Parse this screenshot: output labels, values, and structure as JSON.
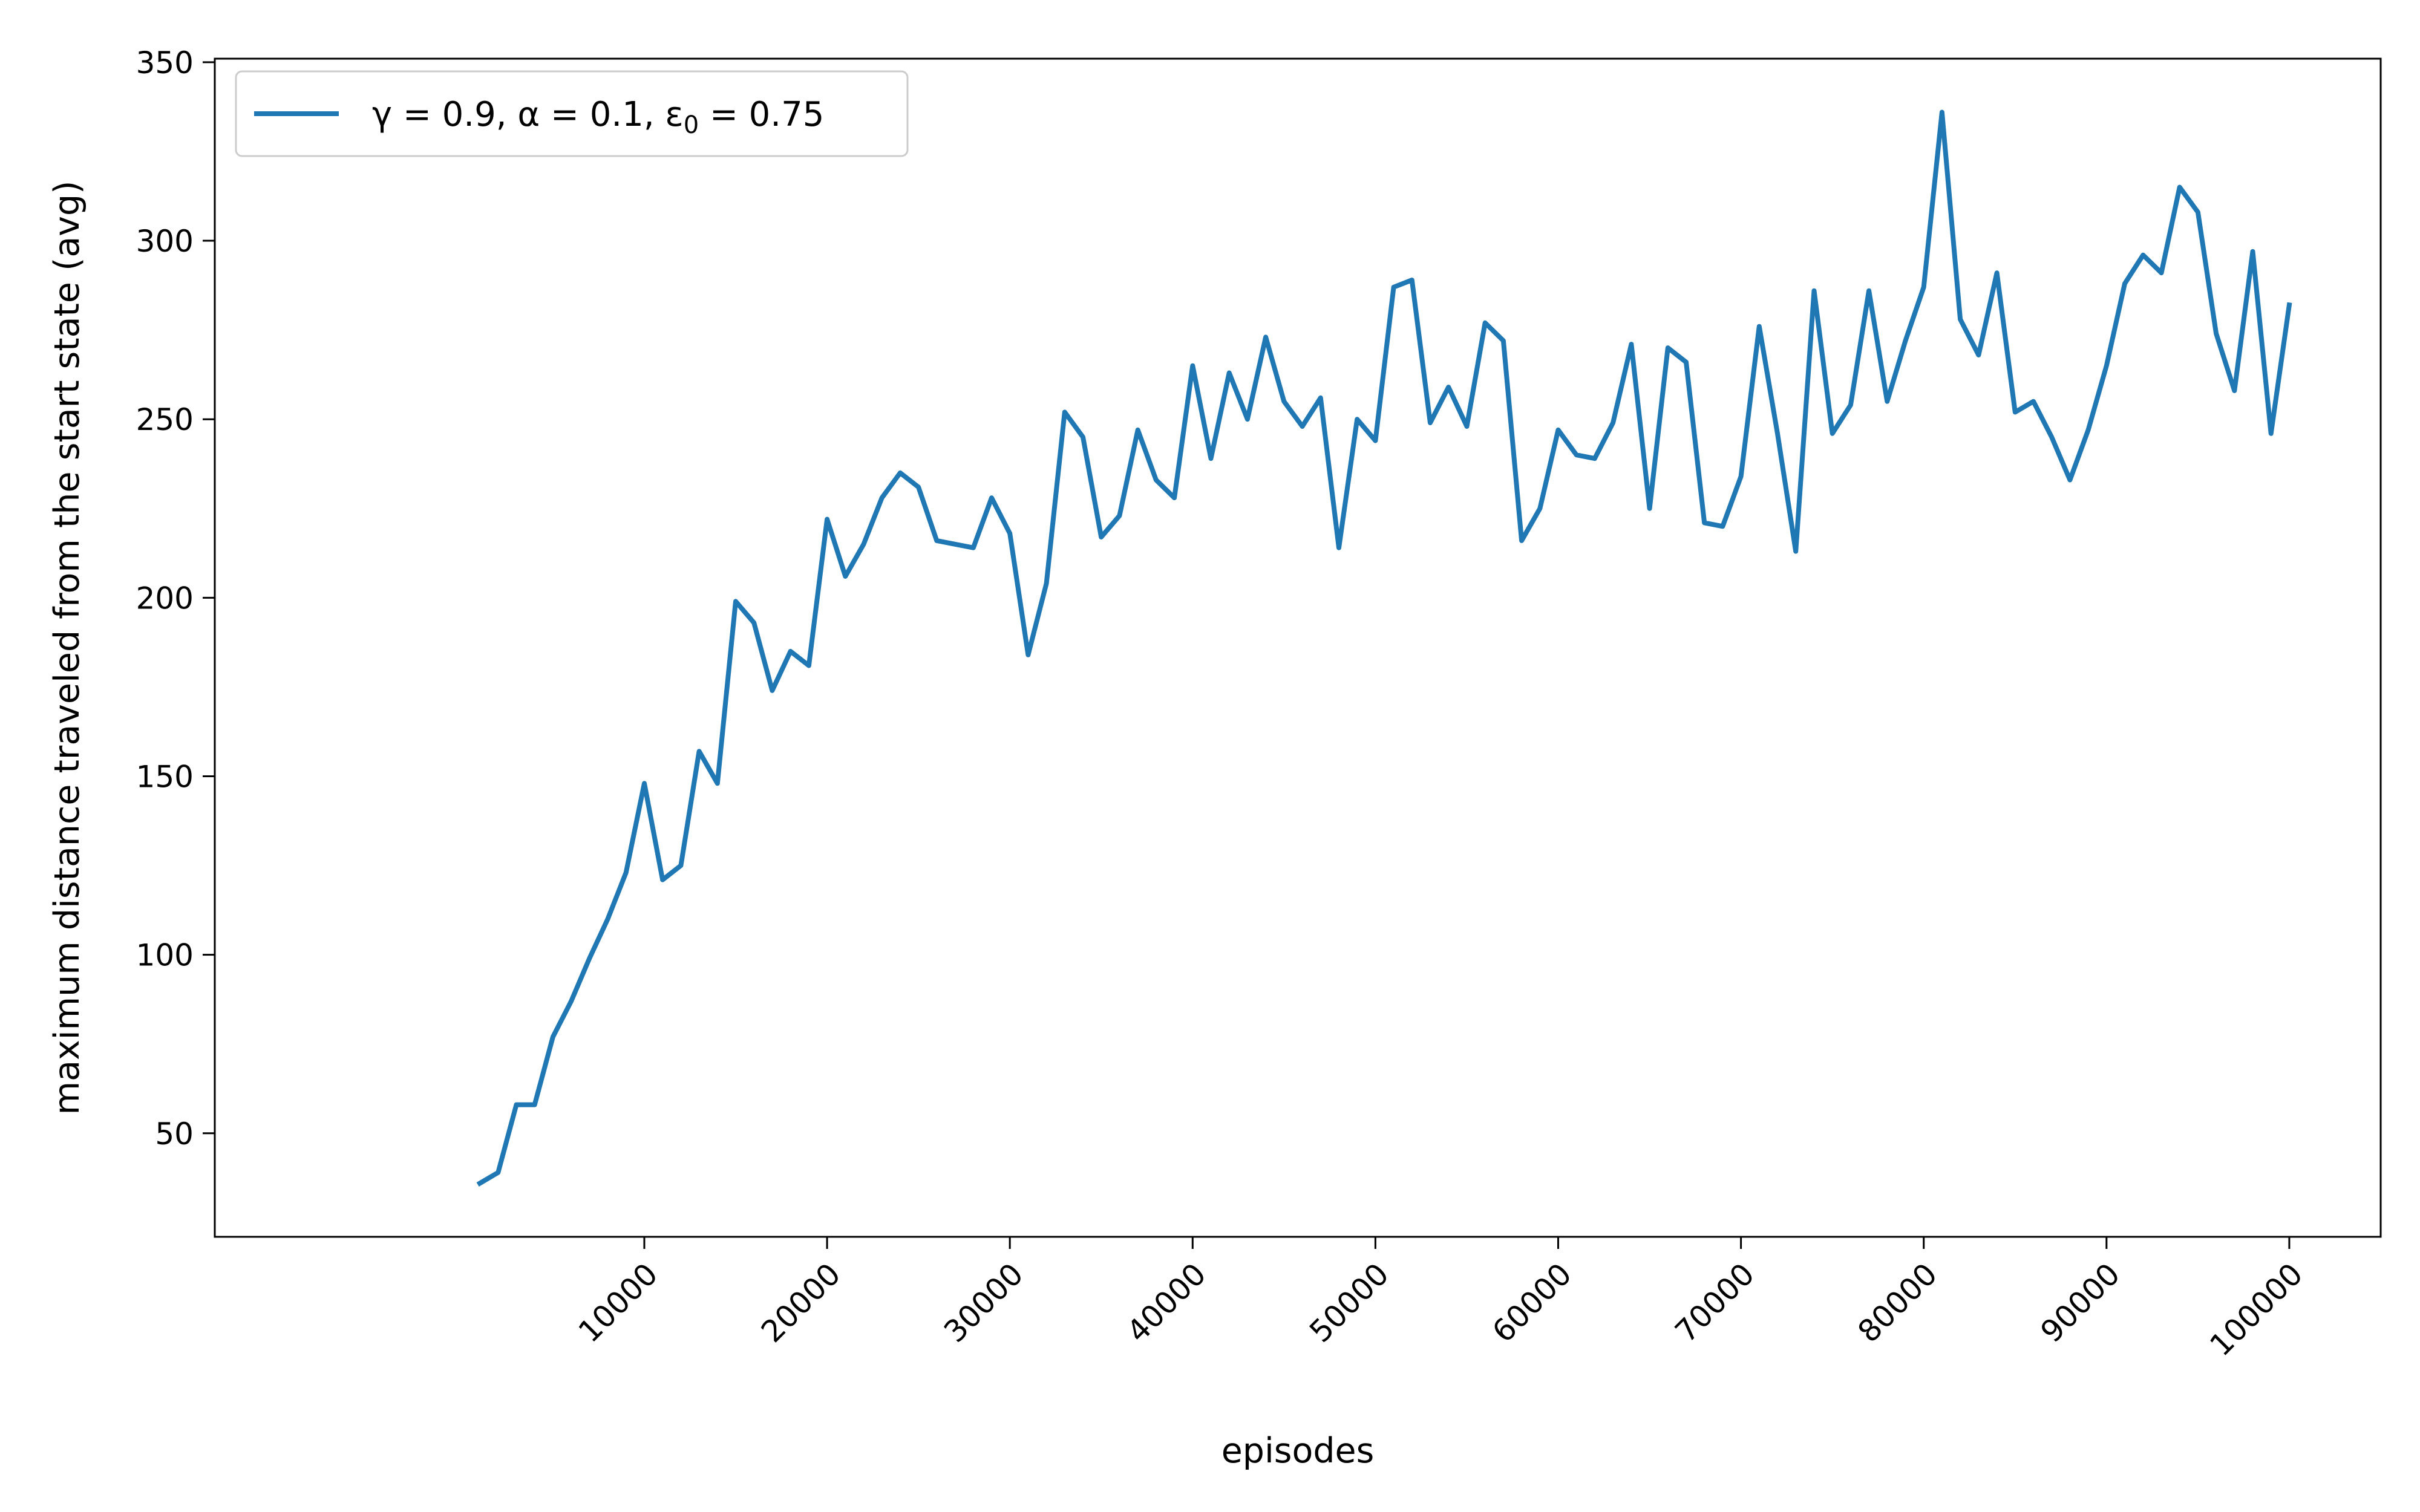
{
  "chart_data": {
    "type": "line",
    "title": "",
    "xlabel": "episodes",
    "ylabel": "maximum distance traveled from the start state (avg)",
    "xlim": [
      -13500,
      105000
    ],
    "ylim": [
      21,
      351
    ],
    "x_ticks": [
      10000,
      20000,
      30000,
      40000,
      50000,
      60000,
      70000,
      80000,
      90000,
      100000
    ],
    "y_ticks": [
      50,
      100,
      150,
      200,
      250,
      300,
      350
    ],
    "grid": false,
    "legend": {
      "position": "top-left",
      "entries": [
        {
          "series": 0,
          "label": "γ = 0.9, α = 0.1, ε0 = 0.75"
        }
      ]
    },
    "series": [
      {
        "name": "γ = 0.9, α = 0.1, ε0 = 0.75",
        "color": "#1f77b4",
        "x": [
          1000,
          2000,
          3000,
          4000,
          5000,
          6000,
          7000,
          8000,
          9000,
          10000,
          11000,
          12000,
          13000,
          14000,
          15000,
          16000,
          17000,
          18000,
          19000,
          20000,
          21000,
          22000,
          23000,
          24000,
          25000,
          26000,
          27000,
          28000,
          29000,
          30000,
          31000,
          32000,
          33000,
          34000,
          35000,
          36000,
          37000,
          38000,
          39000,
          40000,
          41000,
          42000,
          43000,
          44000,
          45000,
          46000,
          47000,
          48000,
          49000,
          50000,
          51000,
          52000,
          53000,
          54000,
          55000,
          56000,
          57000,
          58000,
          59000,
          60000,
          61000,
          62000,
          63000,
          64000,
          65000,
          66000,
          67000,
          68000,
          69000,
          70000,
          71000,
          72000,
          73000,
          74000,
          75000,
          76000,
          77000,
          78000,
          79000,
          80000,
          81000,
          82000,
          83000,
          84000,
          85000,
          86000,
          87000,
          88000,
          89000,
          90000,
          91000,
          92000,
          93000,
          94000,
          95000,
          96000,
          97000,
          98000,
          99000,
          100000
        ],
        "y": [
          36,
          39,
          58,
          58,
          77,
          87,
          99,
          110,
          123,
          148,
          121,
          125,
          157,
          148,
          199,
          193,
          174,
          185,
          181,
          222,
          206,
          215,
          228,
          235,
          231,
          216,
          215,
          214,
          228,
          218,
          184,
          204,
          252,
          245,
          217,
          223,
          247,
          233,
          228,
          265,
          239,
          263,
          250,
          273,
          255,
          248,
          256,
          214,
          250,
          244,
          287,
          289,
          249,
          259,
          248,
          277,
          272,
          216,
          225,
          247,
          240,
          239,
          249,
          271,
          225,
          270,
          266,
          221,
          220,
          234,
          276,
          246,
          213,
          286,
          246,
          254,
          286,
          255,
          272,
          287,
          336,
          278,
          268,
          291,
          252,
          255,
          245,
          233,
          247,
          265,
          288,
          296,
          291,
          315,
          308,
          274,
          258,
          297,
          246,
          282
        ]
      }
    ]
  }
}
